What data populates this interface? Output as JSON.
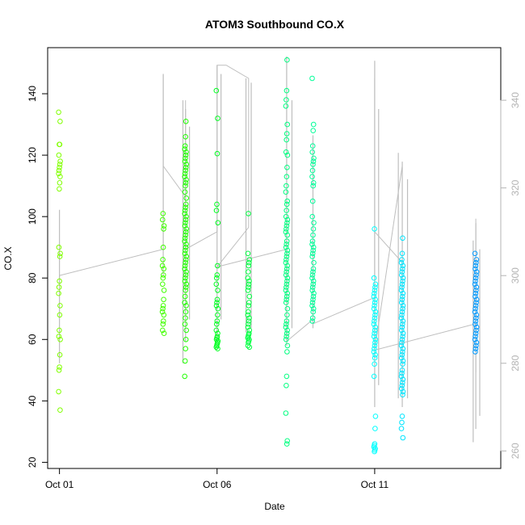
{
  "chart_data": {
    "type": "scatter",
    "title": "ATOM3 Southbound CO.X",
    "xlabel": "Date",
    "ylabel": "CO.X",
    "x_ticks": [
      "Oct 01",
      "Oct 06",
      "Oct 11"
    ],
    "y_ticks": [
      20,
      40,
      60,
      80,
      100,
      120,
      140
    ],
    "y_right_ticks": [
      260,
      280,
      300,
      320,
      340
    ],
    "xlim": [
      "2016-09-30T15:00",
      "2016-10-15T00:00"
    ],
    "ylim": [
      18,
      155
    ],
    "y_right_lim": [
      256,
      352
    ],
    "grid": false,
    "point_style": "open circle",
    "line_color": "#bebebe",
    "right_axis_color": "#b3b3b3",
    "clusters": [
      {
        "time": "2016-10-01T00:00",
        "color": "#80ff00",
        "values": [
          134,
          131,
          123.5,
          123.5,
          120,
          118,
          117,
          116,
          115,
          114,
          113,
          111,
          109,
          90,
          88,
          87,
          79,
          77,
          75,
          71,
          68,
          63,
          61,
          60,
          55,
          51,
          50,
          43,
          37
        ]
      },
      {
        "time": "2016-10-04T07:00",
        "color": "#40ff00",
        "values": [
          101,
          99,
          97,
          96,
          90,
          86,
          84,
          83,
          81,
          80,
          78,
          76,
          73,
          71,
          70,
          69,
          68,
          66,
          65,
          63,
          62
        ]
      },
      {
        "time": "2016-10-05T00:00",
        "color": "#20ff00",
        "values": [
          131,
          126,
          123,
          122,
          121,
          120,
          119,
          118,
          117,
          116,
          115,
          114,
          113,
          112,
          111,
          110,
          108,
          106,
          104,
          103,
          102,
          101,
          100,
          99,
          98,
          97,
          96,
          95,
          94,
          93,
          92,
          91,
          90,
          89,
          88,
          87,
          86,
          85,
          84,
          83,
          82,
          81,
          80,
          79,
          78,
          77,
          76,
          74,
          72,
          71,
          69,
          67,
          65,
          63,
          60,
          57,
          53,
          48
        ]
      },
      {
        "time": "2016-10-06T00:00",
        "color": "#00ff20",
        "values": [
          141,
          132,
          120.5,
          104,
          102,
          98,
          84,
          81,
          80,
          78,
          76,
          73,
          72,
          71,
          70,
          68,
          66,
          65,
          63,
          62,
          61,
          60.5,
          60,
          59.5,
          59,
          58.5,
          58,
          57.5,
          57
        ]
      },
      {
        "time": "2016-10-07T00:00",
        "color": "#00ff40",
        "values": [
          101,
          88,
          86,
          85,
          84,
          82,
          80,
          79,
          78,
          77,
          76,
          74,
          72,
          71,
          69,
          68,
          67,
          66,
          65,
          64,
          63,
          62,
          61.5,
          61,
          60.5,
          60,
          59.5,
          59,
          58,
          57.5
        ]
      },
      {
        "time": "2016-10-08T05:00",
        "color": "#00ff80",
        "values": [
          151,
          141,
          138,
          136,
          130,
          127,
          125,
          121,
          120,
          116,
          113,
          110,
          108,
          105,
          104,
          102,
          100,
          99,
          98,
          97,
          96,
          95,
          94,
          92,
          91,
          90,
          89,
          88,
          87,
          86,
          85,
          84,
          83,
          82,
          81,
          80,
          79,
          78,
          77,
          76,
          75,
          74,
          73,
          72,
          70,
          68,
          66,
          65,
          64,
          63,
          62,
          61,
          60,
          58,
          56,
          48,
          45,
          36,
          27,
          26
        ]
      },
      {
        "time": "2016-10-09T01:00",
        "color": "#00ff99",
        "values": [
          145,
          130,
          128,
          123,
          121,
          119,
          118,
          117,
          115,
          113,
          111,
          110,
          105,
          100,
          98,
          96,
          94,
          92,
          91,
          90,
          89,
          88,
          87,
          85,
          83,
          82,
          81,
          80,
          79,
          78,
          77,
          76,
          75,
          74,
          73,
          72,
          71,
          70,
          69,
          67,
          66
        ]
      },
      {
        "time": "2016-10-11T00:00",
        "color": "#00ffff",
        "values": [
          96,
          80,
          78,
          77,
          76,
          75,
          74,
          73,
          72,
          71,
          70,
          69,
          68,
          67,
          66,
          65,
          64,
          63,
          62,
          61,
          60,
          59,
          58,
          57,
          56,
          55,
          54,
          52,
          48,
          35,
          31,
          26,
          25.5,
          25,
          24.5,
          24,
          23.5
        ]
      },
      {
        "time": "2016-10-11T21:00",
        "color": "#00e5ff",
        "values": [
          93,
          88,
          86,
          85,
          84,
          83,
          82,
          81,
          80,
          79,
          78,
          77,
          76,
          75,
          74,
          73,
          72,
          71,
          70,
          69,
          68,
          67,
          66,
          65,
          64,
          63,
          62,
          61,
          60,
          59,
          58,
          57,
          56,
          55,
          54,
          53,
          52,
          50,
          49,
          48,
          47,
          46,
          45,
          44,
          43,
          42,
          35,
          33,
          31,
          28
        ]
      },
      {
        "time": "2016-10-14T05:00",
        "color": "#0099ff",
        "values": [
          88,
          86,
          85,
          84,
          83,
          82,
          81,
          80,
          79,
          78,
          77,
          76,
          75,
          74,
          73,
          72,
          71,
          70,
          69,
          68,
          67,
          66,
          65,
          64,
          63,
          62,
          61,
          60,
          59,
          58,
          57,
          56
        ]
      }
    ],
    "co_line": [
      {
        "t": "2016-10-01T00:00",
        "v": 298
      },
      {
        "t": "2016-10-01T00:00",
        "v": 300
      },
      {
        "t": "2016-10-04T07:00",
        "v": 306
      },
      {
        "t": "2016-10-04T07:00",
        "v": 346
      },
      {
        "t": "2016-10-04T07:00",
        "v": 325
      },
      {
        "t": "2016-10-05T00:00",
        "v": 318
      },
      {
        "t": "2016-10-05T00:00",
        "v": 340
      },
      {
        "t": "2016-10-05T00:00",
        "v": 306
      },
      {
        "t": "2016-10-06T00:00",
        "v": 310
      },
      {
        "t": "2016-10-06T00:00",
        "v": 348
      },
      {
        "t": "2016-10-06T07:00",
        "v": 348
      },
      {
        "t": "2016-10-07T00:00",
        "v": 345
      },
      {
        "t": "2016-10-07T00:00",
        "v": 311
      },
      {
        "t": "2016-10-06T00:00",
        "v": 302
      },
      {
        "t": "2016-10-08T05:00",
        "v": 306
      },
      {
        "t": "2016-10-08T05:00",
        "v": 350
      },
      {
        "t": "2016-10-08T05:00",
        "v": 285
      },
      {
        "t": "2016-10-09T01:00",
        "v": 290
      },
      {
        "t": "2016-10-09T01:00",
        "v": 330
      },
      {
        "t": "2016-10-09T01:00",
        "v": 289
      },
      {
        "t": "2016-10-11T00:00",
        "v": 295
      },
      {
        "t": "2016-10-11T00:00",
        "v": 345
      },
      {
        "t": "2016-10-11T00:00",
        "v": 310
      },
      {
        "t": "2016-10-11T21:00",
        "v": 303
      },
      {
        "t": "2016-10-11T21:00",
        "v": 325
      },
      {
        "t": "2016-10-11T00:00",
        "v": 283
      },
      {
        "t": "2016-10-14T05:00",
        "v": 289
      },
      {
        "t": "2016-10-14T05:00",
        "v": 313
      },
      {
        "t": "2016-10-14T05:00",
        "v": 278
      }
    ],
    "co_spikes": [
      {
        "t": "2016-10-01T00:00",
        "lo": 280,
        "hi": 315
      },
      {
        "t": "2016-10-04T07:00",
        "lo": 300,
        "hi": 346
      },
      {
        "t": "2016-10-04T22:00",
        "lo": 280,
        "hi": 340
      },
      {
        "t": "2016-10-05T00:00",
        "lo": 285,
        "hi": 338
      },
      {
        "t": "2016-10-05T03:00",
        "lo": 290,
        "hi": 334
      },
      {
        "t": "2016-10-06T00:00",
        "lo": 285,
        "hi": 348
      },
      {
        "t": "2016-10-06T03:00",
        "lo": 290,
        "hi": 346
      },
      {
        "t": "2016-10-06T22:00",
        "lo": 287,
        "hi": 345
      },
      {
        "t": "2016-10-07T02:00",
        "lo": 288,
        "hi": 344
      },
      {
        "t": "2016-10-08T05:00",
        "lo": 284,
        "hi": 350
      },
      {
        "t": "2016-10-08T09:00",
        "lo": 288,
        "hi": 340
      },
      {
        "t": "2016-10-09T01:00",
        "lo": 288,
        "hi": 332
      },
      {
        "t": "2016-10-11T00:00",
        "lo": 270,
        "hi": 349
      },
      {
        "t": "2016-10-11T03:00",
        "lo": 275,
        "hi": 338
      },
      {
        "t": "2016-10-11T18:00",
        "lo": 272,
        "hi": 328
      },
      {
        "t": "2016-10-11T21:00",
        "lo": 270,
        "hi": 326
      },
      {
        "t": "2016-10-12T01:00",
        "lo": 272,
        "hi": 322
      },
      {
        "t": "2016-10-14T03:00",
        "lo": 262,
        "hi": 308
      },
      {
        "t": "2016-10-14T05:00",
        "lo": 265,
        "hi": 312
      },
      {
        "t": "2016-10-14T08:00",
        "lo": 268,
        "hi": 306
      }
    ]
  }
}
